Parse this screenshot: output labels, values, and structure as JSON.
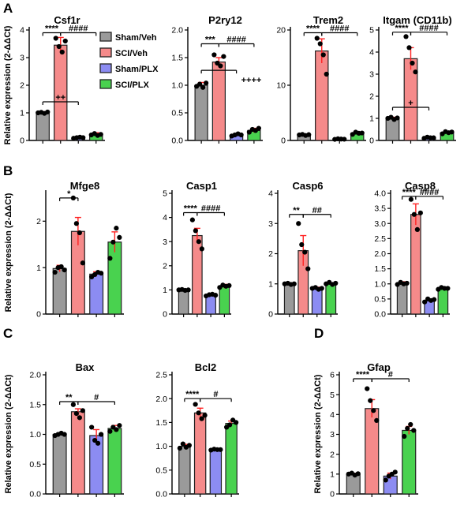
{
  "groups": [
    "Sham/Veh",
    "SCI/Veh",
    "Sham/PLX",
    "SCI/PLX"
  ],
  "colors": {
    "Sham/Veh": "#9a9a9a",
    "SCI/Veh": "#f58a8a",
    "Sham/PLX": "#8c8cf2",
    "SCI/PLX": "#49d24f",
    "bar_edge": "#222222",
    "error": "#ff2222",
    "point": "#000000"
  },
  "legend_labels": [
    "Sham/Veh",
    "SCI/Veh",
    "Sham/PLX",
    "SCI/PLX"
  ],
  "ylabel": "Relative expression (2-ΔΔCt)",
  "panel_letters": [
    "A",
    "B",
    "C",
    "D"
  ],
  "chart_data": [
    {
      "type": "bar",
      "panel": "A",
      "title": "Csf1r",
      "categories": [
        "Sham/Veh",
        "SCI/Veh",
        "Sham/PLX",
        "SCI/PLX"
      ],
      "values": [
        1.0,
        3.45,
        0.1,
        0.22
      ],
      "errors": [
        0.04,
        0.28,
        0.03,
        0.06
      ],
      "points": [
        [
          1.0,
          1.02,
          0.98,
          1.03
        ],
        [
          3.7,
          3.4,
          3.2,
          3.6
        ],
        [
          0.08,
          0.1,
          0.12,
          0.1
        ],
        [
          0.2,
          0.25,
          0.18,
          0.22
        ]
      ],
      "ylim": [
        0,
        4
      ],
      "yticks": [
        0,
        1,
        2,
        3,
        4
      ],
      "ytick_labels": [
        "0",
        "1",
        "2",
        "3",
        "4"
      ],
      "ylabel": "Relative expression (2-ΔΔCt)",
      "annotations": [
        {
          "text": "****",
          "from": 0,
          "to": 1,
          "y": 3.9
        },
        {
          "text": "####",
          "from": 1,
          "to": 3,
          "y": 3.9
        },
        {
          "text": "++",
          "from": 0,
          "to": 2,
          "y": 1.4
        }
      ]
    },
    {
      "type": "bar",
      "panel": "A",
      "title": "P2ry12",
      "categories": [
        "Sham/Veh",
        "SCI/Veh",
        "Sham/PLX",
        "SCI/PLX"
      ],
      "values": [
        1.0,
        1.42,
        0.1,
        0.18
      ],
      "errors": [
        0.05,
        0.08,
        0.02,
        0.04
      ],
      "points": [
        [
          0.98,
          1.02,
          0.96,
          1.04
        ],
        [
          1.55,
          1.4,
          1.35,
          1.52
        ],
        [
          0.08,
          0.1,
          0.12,
          0.1
        ],
        [
          0.15,
          0.2,
          0.18,
          0.22
        ]
      ],
      "ylim": [
        0,
        2.0
      ],
      "yticks": [
        0,
        0.5,
        1.0,
        1.5,
        2.0
      ],
      "ytick_labels": [
        "0.0",
        "0.5",
        "1.0",
        "1.5",
        "2.0"
      ],
      "ylabel": "",
      "annotations": [
        {
          "text": "***",
          "from": 0,
          "to": 1,
          "y": 1.75
        },
        {
          "text": "####",
          "from": 1,
          "to": 3,
          "y": 1.75
        },
        {
          "text": "++++",
          "from": 0,
          "to": 2,
          "y": 1.27
        }
      ]
    },
    {
      "type": "bar",
      "panel": "A",
      "title": "Trem2",
      "categories": [
        "Sham/Veh",
        "SCI/Veh",
        "Sham/PLX",
        "SCI/PLX"
      ],
      "values": [
        1.0,
        16.2,
        0.25,
        1.3
      ],
      "errors": [
        0.15,
        2.2,
        0.08,
        0.25
      ],
      "points": [
        [
          1.0,
          1.1,
          0.9,
          1.05
        ],
        [
          18.5,
          17.5,
          15.5,
          12.0
        ],
        [
          0.2,
          0.3,
          0.25,
          0.22
        ],
        [
          1.1,
          1.5,
          1.3,
          1.35
        ]
      ],
      "ylim": [
        0,
        20
      ],
      "yticks": [
        0,
        10,
        20
      ],
      "ytick_labels": [
        "0",
        "10",
        "20"
      ],
      "ylabel": "",
      "annotations": [
        {
          "text": "****",
          "from": 0,
          "to": 1,
          "y": 19.5
        },
        {
          "text": "####",
          "from": 1,
          "to": 3,
          "y": 19.5
        }
      ]
    },
    {
      "type": "bar",
      "panel": "A",
      "title": "Itgam (CD11b)",
      "categories": [
        "Sham/Veh",
        "SCI/Veh",
        "Sham/PLX",
        "SCI/PLX"
      ],
      "values": [
        1.0,
        3.7,
        0.12,
        0.35
      ],
      "errors": [
        0.05,
        0.5,
        0.04,
        0.06
      ],
      "points": [
        [
          1.0,
          1.05,
          0.95,
          1.02
        ],
        [
          4.7,
          4.2,
          3.5,
          3.1
        ],
        [
          0.1,
          0.15,
          0.12,
          0.12
        ],
        [
          0.3,
          0.4,
          0.35,
          0.38
        ]
      ],
      "ylim": [
        0,
        5
      ],
      "yticks": [
        0,
        1,
        2,
        3,
        4,
        5
      ],
      "ytick_labels": [
        "0",
        "1",
        "2",
        "3",
        "4",
        "5"
      ],
      "ylabel": "",
      "annotations": [
        {
          "text": "****",
          "from": 0,
          "to": 1,
          "y": 4.9
        },
        {
          "text": "####",
          "from": 1,
          "to": 3,
          "y": 4.9
        },
        {
          "text": "+",
          "from": 0,
          "to": 2,
          "y": 1.5
        }
      ]
    },
    {
      "type": "bar",
      "panel": "B",
      "title": "Mfge8",
      "categories": [
        "Sham/Veh",
        "SCI/Veh",
        "Sham/PLX",
        "SCI/PLX"
      ],
      "values": [
        0.98,
        1.78,
        0.86,
        1.55
      ],
      "errors": [
        0.07,
        0.3,
        0.05,
        0.22
      ],
      "points": [
        [
          0.9,
          1.0,
          1.02,
          0.95
        ],
        [
          2.5,
          1.95,
          1.75,
          1.1
        ],
        [
          0.8,
          0.85,
          0.9,
          0.88
        ],
        [
          1.2,
          1.55,
          1.85,
          1.65
        ]
      ],
      "ylim": [
        0,
        2.6
      ],
      "yticks": [
        0,
        1,
        2
      ],
      "ytick_labels": [
        "0",
        "1",
        "2"
      ],
      "ylabel": "Relative expression (2-ΔΔCt)",
      "annotations": [
        {
          "text": "*",
          "from": 0,
          "to": 1,
          "y": 2.5
        }
      ]
    },
    {
      "type": "bar",
      "panel": "B",
      "title": "Casp1",
      "categories": [
        "Sham/Veh",
        "SCI/Veh",
        "Sham/PLX",
        "SCI/PLX"
      ],
      "values": [
        1.0,
        3.25,
        0.8,
        1.15
      ],
      "errors": [
        0.03,
        0.3,
        0.05,
        0.08
      ],
      "points": [
        [
          1.0,
          1.02,
          0.98,
          1.0
        ],
        [
          3.9,
          3.45,
          3.0,
          2.7
        ],
        [
          0.75,
          0.8,
          0.82,
          0.78
        ],
        [
          1.1,
          1.2,
          1.15,
          1.18
        ]
      ],
      "ylim": [
        0,
        5
      ],
      "yticks": [
        0,
        1,
        2,
        3,
        4,
        5
      ],
      "ytick_labels": [
        "0",
        "1",
        "2",
        "3",
        "4",
        "5"
      ],
      "ylabel": "",
      "annotations": [
        {
          "text": "****",
          "from": 0,
          "to": 1,
          "y": 4.2
        },
        {
          "text": "####",
          "from": 1,
          "to": 3,
          "y": 4.2
        }
      ]
    },
    {
      "type": "bar",
      "panel": "B",
      "title": "Casp6",
      "categories": [
        "Sham/Veh",
        "SCI/Veh",
        "Sham/PLX",
        "SCI/PLX"
      ],
      "values": [
        1.0,
        2.1,
        0.85,
        1.0
      ],
      "errors": [
        0.03,
        0.5,
        0.04,
        0.04
      ],
      "points": [
        [
          1.0,
          1.02,
          0.98,
          1.0
        ],
        [
          3.0,
          2.3,
          2.05,
          1.5
        ],
        [
          0.85,
          0.88,
          0.82,
          0.85
        ],
        [
          1.0,
          1.05,
          0.98,
          1.02
        ]
      ],
      "ylim": [
        0,
        4
      ],
      "yticks": [
        0,
        1,
        2,
        3,
        4
      ],
      "ytick_labels": [
        "0",
        "1",
        "2",
        "3",
        "4"
      ],
      "ylabel": "",
      "annotations": [
        {
          "text": "**",
          "from": 0,
          "to": 1,
          "y": 3.3
        },
        {
          "text": "##",
          "from": 1,
          "to": 3,
          "y": 3.3
        }
      ]
    },
    {
      "type": "bar",
      "panel": "B",
      "title": "Casp8",
      "categories": [
        "Sham/Veh",
        "SCI/Veh",
        "Sham/PLX",
        "SCI/PLX"
      ],
      "values": [
        1.02,
        3.3,
        0.45,
        0.85
      ],
      "errors": [
        0.05,
        0.35,
        0.05,
        0.04
      ],
      "points": [
        [
          0.98,
          1.05,
          1.0,
          1.02
        ],
        [
          3.8,
          3.3,
          2.8,
          3.35
        ],
        [
          0.4,
          0.5,
          0.45,
          0.48
        ],
        [
          0.82,
          0.88,
          0.85,
          0.85
        ]
      ],
      "ylim": [
        0,
        4.0
      ],
      "yticks": [
        0,
        0.5,
        1.0,
        1.5,
        2.0,
        2.5,
        3.0,
        3.5,
        4.0
      ],
      "ytick_labels": [
        "0.0",
        "0.5",
        "1.0",
        "1.5",
        "2.0",
        "2.5",
        "3.0",
        "3.5",
        "4.0"
      ],
      "ylabel": "",
      "annotations": [
        {
          "text": "****",
          "from": 0,
          "to": 1,
          "y": 3.9
        },
        {
          "text": "####",
          "from": 1,
          "to": 3,
          "y": 3.9
        }
      ]
    },
    {
      "type": "bar",
      "panel": "C",
      "title": "Bax",
      "categories": [
        "Sham/Veh",
        "SCI/Veh",
        "Sham/PLX",
        "SCI/PLX"
      ],
      "values": [
        1.0,
        1.38,
        0.98,
        1.1
      ],
      "errors": [
        0.02,
        0.05,
        0.1,
        0.05
      ],
      "points": [
        [
          0.98,
          1.0,
          1.02,
          1.0
        ],
        [
          1.5,
          1.35,
          1.28,
          1.4
        ],
        [
          1.12,
          0.9,
          0.85,
          1.0
        ],
        [
          1.05,
          1.12,
          1.08,
          1.15
        ]
      ],
      "ylim": [
        0,
        2.0
      ],
      "yticks": [
        0,
        0.5,
        1.0,
        1.5,
        2.0
      ],
      "ytick_labels": [
        "0.0",
        "0.5",
        "1.0",
        "1.5",
        "2.0"
      ],
      "ylabel": "Relative expression (2-ΔΔCt)",
      "annotations": [
        {
          "text": "**",
          "from": 0,
          "to": 1,
          "y": 1.55
        },
        {
          "text": "#",
          "from": 1,
          "to": 3,
          "y": 1.55
        }
      ]
    },
    {
      "type": "bar",
      "panel": "C",
      "title": "Bcl2",
      "categories": [
        "Sham/Veh",
        "SCI/Veh",
        "Sham/PLX",
        "SCI/PLX"
      ],
      "values": [
        1.0,
        1.7,
        0.93,
        1.48
      ],
      "errors": [
        0.04,
        0.1,
        0.02,
        0.05
      ],
      "points": [
        [
          0.96,
          1.05,
          0.98,
          1.02
        ],
        [
          1.88,
          1.7,
          1.58,
          1.65
        ],
        [
          0.92,
          0.94,
          0.93,
          0.93
        ],
        [
          1.4,
          1.45,
          1.55,
          1.5
        ]
      ],
      "ylim": [
        0,
        2.5
      ],
      "yticks": [
        0,
        0.5,
        1.0,
        1.5,
        2.0,
        2.5
      ],
      "ytick_labels": [
        "0.0",
        "0.5",
        "1.0",
        "1.5",
        "2.0",
        "2.5"
      ],
      "ylabel": "",
      "annotations": [
        {
          "text": "****",
          "from": 0,
          "to": 1,
          "y": 2.0
        },
        {
          "text": "#",
          "from": 1,
          "to": 3,
          "y": 2.0
        }
      ]
    },
    {
      "type": "bar",
      "panel": "D",
      "title": "Gfap",
      "categories": [
        "Sham/Veh",
        "SCI/Veh",
        "Sham/PLX",
        "SCI/PLX"
      ],
      "values": [
        1.0,
        4.3,
        0.9,
        3.2
      ],
      "errors": [
        0.04,
        0.45,
        0.15,
        0.2
      ],
      "points": [
        [
          1.0,
          1.05,
          0.95,
          1.02
        ],
        [
          5.3,
          4.7,
          4.2,
          3.7
        ],
        [
          0.7,
          0.9,
          1.0,
          1.1
        ],
        [
          2.9,
          3.3,
          3.5,
          3.2
        ]
      ],
      "ylim": [
        0,
        6
      ],
      "yticks": [
        0,
        1,
        2,
        3,
        4,
        5,
        6
      ],
      "ytick_labels": [
        "0",
        "1",
        "2",
        "3",
        "4",
        "5",
        "6"
      ],
      "ylabel": "Relative expression (2-ΔΔCt)",
      "annotations": [
        {
          "text": "****",
          "from": 0,
          "to": 1,
          "y": 5.8
        },
        {
          "text": "#",
          "from": 1,
          "to": 3,
          "y": 5.8
        }
      ]
    }
  ]
}
